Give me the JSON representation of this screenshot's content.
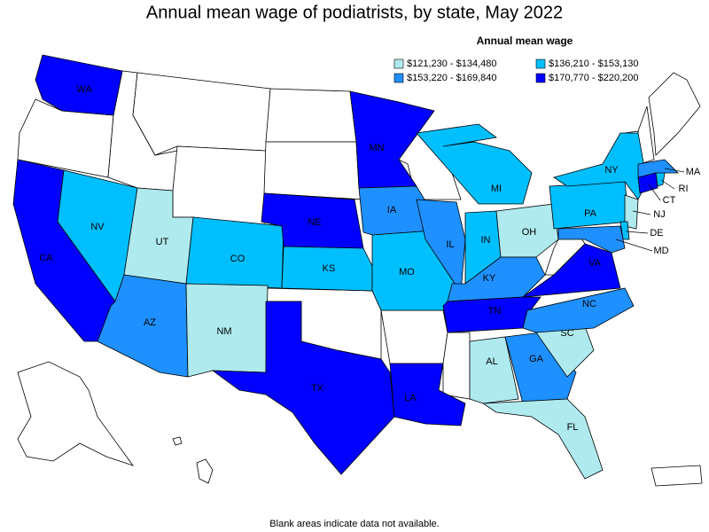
{
  "title": "Annual mean wage of podiatrists, by state, May 2022",
  "legend": {
    "title": "Annual mean wage",
    "items": [
      {
        "label": "$121,230 - $134,480",
        "color": "#aeeaee"
      },
      {
        "label": "$136,210 - $153,130",
        "color": "#00bfff"
      },
      {
        "label": "$153,220 - $169,840",
        "color": "#1e90ff"
      },
      {
        "label": "$170,770 - $220,200",
        "color": "#0000ff"
      }
    ]
  },
  "states": [
    {
      "label": "WA",
      "class": 3
    },
    {
      "label": "CA",
      "class": 3
    },
    {
      "label": "NV",
      "class": 1
    },
    {
      "label": "UT",
      "class": 0
    },
    {
      "label": "AZ",
      "class": 2
    },
    {
      "label": "CO",
      "class": 1
    },
    {
      "label": "NM",
      "class": 0
    },
    {
      "label": "NE",
      "class": 3
    },
    {
      "label": "KS",
      "class": 1
    },
    {
      "label": "TX",
      "class": 3
    },
    {
      "label": "MN",
      "class": 3
    },
    {
      "label": "IA",
      "class": 2
    },
    {
      "label": "MO",
      "class": 1
    },
    {
      "label": "LA",
      "class": 3
    },
    {
      "label": "IL",
      "class": 2
    },
    {
      "label": "MI",
      "class": 1
    },
    {
      "label": "IN",
      "class": 1
    },
    {
      "label": "OH",
      "class": 0
    },
    {
      "label": "KY",
      "class": 2
    },
    {
      "label": "TN",
      "class": 3
    },
    {
      "label": "AL",
      "class": 0
    },
    {
      "label": "GA",
      "class": 2
    },
    {
      "label": "SC",
      "class": 0
    },
    {
      "label": "FL",
      "class": 0
    },
    {
      "label": "NC",
      "class": 2
    },
    {
      "label": "VA",
      "class": 3
    },
    {
      "label": "PA",
      "class": 1
    },
    {
      "label": "NY",
      "class": 1
    },
    {
      "label": "MA",
      "class": 2
    },
    {
      "label": "RI",
      "class": 1
    },
    {
      "label": "CT",
      "class": 3
    },
    {
      "label": "NJ",
      "class": 0
    },
    {
      "label": "DE",
      "class": 1
    },
    {
      "label": "MD",
      "class": 2
    }
  ],
  "footnote": "Blank areas indicate data not available."
}
